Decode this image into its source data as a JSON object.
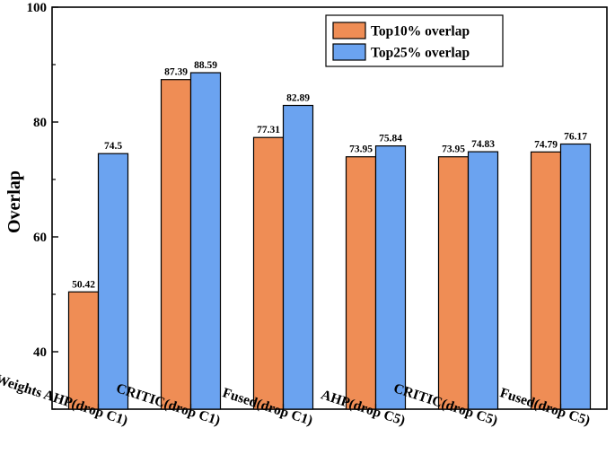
{
  "chart_data": {
    "type": "bar",
    "title": "",
    "xlabel": "",
    "ylabel": "Overlap",
    "ylim": [
      30,
      100
    ],
    "yticks": [
      40,
      60,
      80,
      100
    ],
    "categories": [
      "Weights AHP(drop C1)",
      "CRITIC(drop C1)",
      "Fused(drop C1)",
      "AHP(drop C5)",
      "CRITIC(drop C5)",
      "Fused(drop C5)"
    ],
    "series": [
      {
        "name": "Top10% overlap",
        "color": "#ef8d55",
        "values": [
          50.42,
          87.39,
          77.31,
          73.95,
          73.95,
          74.79
        ],
        "labels": [
          "50.42",
          "87.39",
          "77.31",
          "73.95",
          "73.95",
          "74.79"
        ]
      },
      {
        "name": "Top25% overlap",
        "color": "#6ba3f0",
        "values": [
          74.5,
          88.59,
          82.89,
          75.84,
          74.83,
          76.17
        ],
        "labels": [
          "74.5",
          "88.59",
          "82.89",
          "75.84",
          "74.83",
          "76.17"
        ]
      }
    ],
    "grid": false,
    "legend_position": "top-right"
  }
}
